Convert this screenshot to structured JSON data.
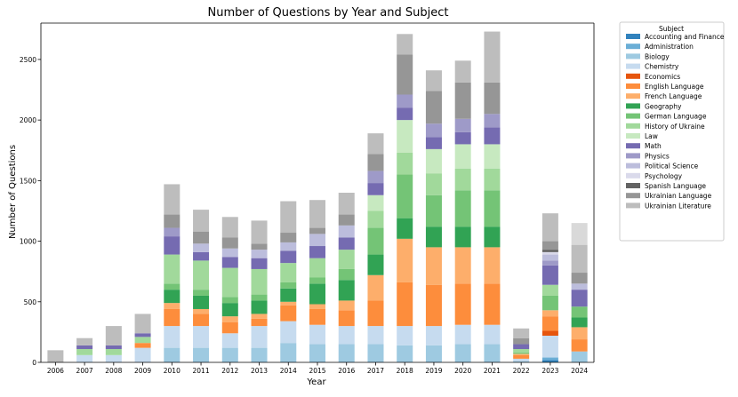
{
  "chart_data": {
    "type": "bar",
    "stacked": true,
    "title": "Number of Questions by Year and Subject",
    "xlabel": "Year",
    "ylabel": "Number of Questions",
    "ylim": [
      0,
      2800
    ],
    "yticks": [
      0,
      500,
      1000,
      1500,
      2000,
      2500
    ],
    "grid": false,
    "legend_title": "Subject",
    "legend_position": "outside-right",
    "categories": [
      "2006",
      "2007",
      "2008",
      "2009",
      "2010",
      "2011",
      "2012",
      "2013",
      "2014",
      "2015",
      "2016",
      "2017",
      "2018",
      "2019",
      "2020",
      "2021",
      "2022",
      "2023",
      "2024"
    ],
    "series": [
      {
        "name": "Accounting and Finance",
        "color": "#3182bd",
        "values": [
          0,
          0,
          0,
          0,
          0,
          0,
          0,
          0,
          0,
          0,
          0,
          0,
          0,
          0,
          0,
          0,
          0,
          20,
          0
        ]
      },
      {
        "name": "Administration",
        "color": "#6baed6",
        "values": [
          0,
          0,
          0,
          0,
          0,
          0,
          0,
          0,
          0,
          0,
          0,
          0,
          0,
          0,
          0,
          0,
          0,
          20,
          0
        ]
      },
      {
        "name": "Biology",
        "color": "#9ecae1",
        "values": [
          0,
          0,
          0,
          0,
          120,
          120,
          120,
          120,
          160,
          150,
          150,
          150,
          140,
          140,
          150,
          150,
          10,
          0,
          90
        ]
      },
      {
        "name": "Chemistry",
        "color": "#c6dbef",
        "values": [
          0,
          60,
          60,
          120,
          180,
          180,
          120,
          180,
          180,
          160,
          150,
          150,
          160,
          160,
          160,
          160,
          20,
          180,
          0
        ]
      },
      {
        "name": "Economics",
        "color": "#e6550d",
        "values": [
          0,
          0,
          0,
          0,
          0,
          0,
          0,
          0,
          0,
          0,
          0,
          0,
          0,
          0,
          0,
          0,
          0,
          40,
          0
        ]
      },
      {
        "name": "English Language",
        "color": "#fd8d3c",
        "values": [
          0,
          0,
          0,
          40,
          140,
          100,
          90,
          60,
          130,
          130,
          130,
          210,
          360,
          340,
          340,
          340,
          30,
          120,
          100
        ]
      },
      {
        "name": "French Language",
        "color": "#fdae6b",
        "values": [
          0,
          0,
          0,
          0,
          50,
          40,
          50,
          40,
          30,
          40,
          80,
          210,
          360,
          310,
          300,
          300,
          10,
          50,
          100
        ]
      },
      {
        "name": "Geography",
        "color": "#31a354",
        "values": [
          0,
          0,
          0,
          0,
          110,
          110,
          110,
          110,
          110,
          170,
          170,
          170,
          170,
          170,
          170,
          170,
          0,
          0,
          80
        ]
      },
      {
        "name": "German Language",
        "color": "#74c476",
        "values": [
          0,
          0,
          0,
          0,
          50,
          50,
          50,
          50,
          50,
          50,
          90,
          220,
          360,
          260,
          300,
          300,
          10,
          120,
          90
        ]
      },
      {
        "name": "History of Ukraine",
        "color": "#a1d99b",
        "values": [
          0,
          50,
          50,
          50,
          240,
          240,
          240,
          210,
          160,
          160,
          160,
          140,
          180,
          180,
          180,
          180,
          30,
          90,
          0
        ]
      },
      {
        "name": "Law",
        "color": "#c7e9c0",
        "values": [
          0,
          0,
          0,
          0,
          0,
          0,
          0,
          0,
          0,
          0,
          0,
          130,
          270,
          200,
          200,
          200,
          0,
          0,
          0
        ]
      },
      {
        "name": "Math",
        "color": "#756bb1",
        "values": [
          0,
          30,
          30,
          30,
          150,
          70,
          90,
          90,
          100,
          100,
          100,
          100,
          100,
          100,
          100,
          140,
          40,
          160,
          140
        ]
      },
      {
        "name": "Physics",
        "color": "#9e9ac8",
        "values": [
          0,
          0,
          0,
          0,
          70,
          0,
          0,
          0,
          0,
          0,
          0,
          100,
          110,
          110,
          110,
          110,
          0,
          40,
          0
        ]
      },
      {
        "name": "Political Science",
        "color": "#bcbddc",
        "values": [
          0,
          0,
          0,
          0,
          0,
          70,
          70,
          70,
          70,
          100,
          100,
          0,
          0,
          0,
          0,
          0,
          0,
          50,
          50
        ]
      },
      {
        "name": "Psychology",
        "color": "#dadaeb",
        "values": [
          0,
          0,
          0,
          0,
          0,
          0,
          0,
          0,
          0,
          0,
          0,
          0,
          0,
          0,
          0,
          0,
          0,
          20,
          0
        ]
      },
      {
        "name": "Spanish Language",
        "color": "#636363",
        "values": [
          0,
          0,
          0,
          0,
          0,
          0,
          0,
          0,
          0,
          0,
          0,
          0,
          0,
          0,
          0,
          0,
          0,
          20,
          0
        ]
      },
      {
        "name": "Ukrainian Language",
        "color": "#969696",
        "values": [
          0,
          0,
          0,
          0,
          110,
          100,
          90,
          50,
          80,
          50,
          90,
          140,
          330,
          270,
          300,
          260,
          50,
          70,
          90
        ]
      },
      {
        "name": "Ukrainian Literature",
        "color": "#bdbdbd",
        "values": [
          100,
          60,
          160,
          160,
          250,
          180,
          170,
          190,
          260,
          230,
          180,
          170,
          170,
          170,
          180,
          420,
          80,
          230,
          230
        ]
      },
      {
        "name": "",
        "color": "#d9d9d9",
        "values": [
          0,
          0,
          0,
          0,
          0,
          0,
          0,
          0,
          0,
          0,
          0,
          0,
          0,
          0,
          0,
          0,
          0,
          0,
          180
        ]
      }
    ]
  }
}
